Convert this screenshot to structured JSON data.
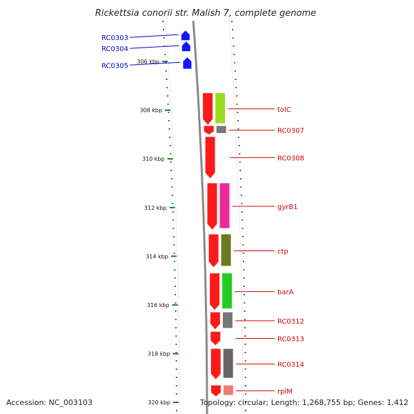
{
  "title": "Rickettsia conorii str. Malish 7, complete genome",
  "footer": {
    "accession": "Accession: NC_003103",
    "summary": "Topology: circular; Length: 1,268,755 bp; Genes: 1,412"
  },
  "colors": {
    "backbone": "#888888",
    "tick": "#1a7a1a",
    "minus_label": "#0000cc",
    "plus_label": "#cc0000",
    "minus_gene": "#1515ff",
    "plus_gene": "#ff1a1a"
  },
  "scale": {
    "unit": "kbp",
    "ticks": [
      {
        "pos": 306,
        "label": "306 kbp"
      },
      {
        "pos": 308,
        "label": "308 kbp"
      },
      {
        "pos": 310,
        "label": "310 kbp"
      },
      {
        "pos": 312,
        "label": "312 kbp"
      },
      {
        "pos": 314,
        "label": "314 kbp"
      },
      {
        "pos": 316,
        "label": "316 kbp"
      },
      {
        "pos": 318,
        "label": "318 kbp"
      },
      {
        "pos": 320,
        "label": "320 kbp"
      }
    ]
  },
  "genes": [
    {
      "name": "RC0303",
      "strand": "-",
      "start": 304.9,
      "end": 305.1,
      "cog_color": "#c8c8c8"
    },
    {
      "name": "RC0304",
      "strand": "-",
      "start": 305.35,
      "end": 305.55,
      "cog_color": "#c8c8c8"
    },
    {
      "name": "RC0305",
      "strand": "-",
      "start": 306.0,
      "end": 306.3,
      "cog_color": "#c8c8c8"
    },
    {
      "name": "tolC",
      "strand": "+",
      "start": 307.3,
      "end": 308.6,
      "cog_color": "#99dd22"
    },
    {
      "name": "RC0307",
      "strand": "+",
      "start": 308.65,
      "end": 309.0,
      "cog_color": "#777777"
    },
    {
      "name": "RC0308",
      "strand": "+",
      "start": 309.1,
      "end": 310.8,
      "cog_color": ""
    },
    {
      "name": "gyrB1",
      "strand": "+",
      "start": 311.0,
      "end": 312.9,
      "cog_color": "#ee2a9a"
    },
    {
      "name": "ctp",
      "strand": "+",
      "start": 313.1,
      "end": 314.45,
      "cog_color": "#6b7a1e"
    },
    {
      "name": "barA",
      "strand": "+",
      "start": 314.7,
      "end": 316.2,
      "cog_color": "#22cc22"
    },
    {
      "name": "RC0312",
      "strand": "+",
      "start": 316.3,
      "end": 317.0,
      "cog_color": "#777777"
    },
    {
      "name": "RC0313",
      "strand": "+",
      "start": 317.1,
      "end": 317.65,
      "cog_color": ""
    },
    {
      "name": "RC0314",
      "strand": "+",
      "start": 317.8,
      "end": 319.05,
      "cog_color": "#666666"
    },
    {
      "name": "rplM",
      "strand": "+",
      "start": 319.3,
      "end": 319.75,
      "cog_color": "#f07a7a"
    }
  ]
}
